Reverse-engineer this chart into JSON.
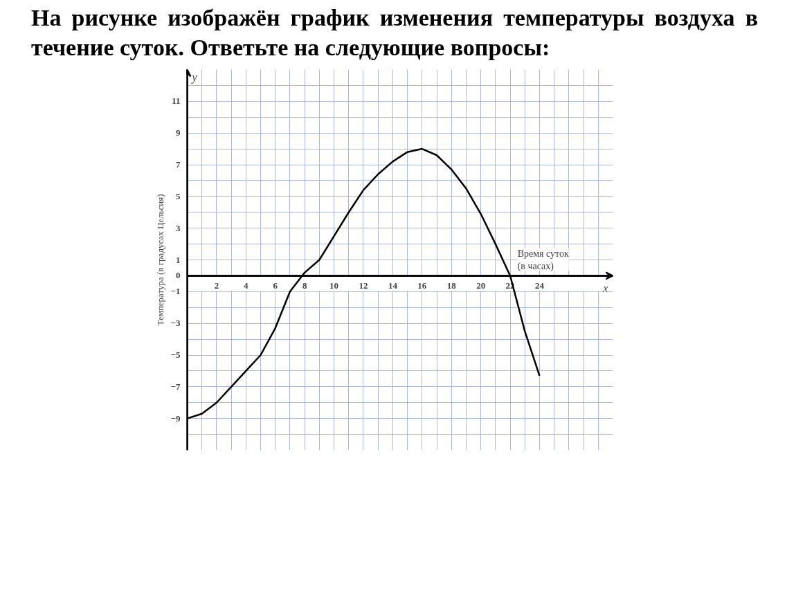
{
  "chart_data": {
    "type": "line",
    "title": "На рисунке  изображён график изменения температуры воздуха в течение суток. Ответьте на следующие вопросы:",
    "xlabel": "Время суток (в часах)",
    "ylabel": "Температура (в градусах Цельсия)",
    "annotations": [
      "x",
      "y"
    ],
    "x": [
      0,
      1,
      2,
      3,
      4,
      5,
      6,
      7,
      8,
      9,
      10,
      11,
      12,
      13,
      14,
      15,
      16,
      17,
      18,
      19,
      20,
      21,
      22,
      23,
      24
    ],
    "series": [
      {
        "color": "#000000",
        "values": [
          -9,
          -8.7,
          -8,
          -7,
          -6,
          -5,
          -3.3,
          -1,
          0.2,
          1,
          2.5,
          4,
          5.4,
          6.4,
          7.2,
          7.8,
          8,
          7.6,
          6.7,
          5.5,
          3.9,
          2,
          0,
          -3.5,
          -6.3
        ]
      }
    ],
    "xlim": [
      0,
      29
    ],
    "ylim": [
      -11,
      13
    ],
    "xticks": [
      2,
      4,
      6,
      8,
      10,
      12,
      14,
      16,
      18,
      20,
      22,
      24
    ],
    "yticks": [
      11,
      9,
      7,
      5,
      3,
      1,
      0,
      -1,
      -3,
      -5,
      -7,
      -9
    ],
    "grid": true,
    "marker": "none",
    "line_style": "solid"
  }
}
